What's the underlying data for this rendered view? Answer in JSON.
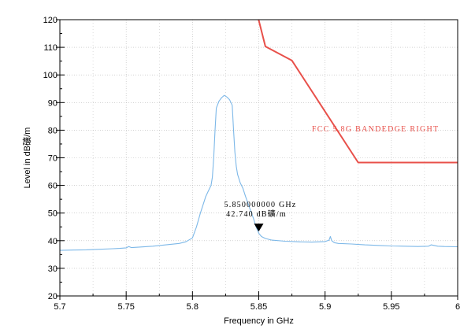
{
  "chart_data": {
    "type": "line",
    "xlabel": "Frequency in GHz",
    "ylabel": "Level in dB礦/m",
    "xlim": [
      5.7,
      6.0
    ],
    "ylim": [
      20,
      120
    ],
    "x_ticks": [
      "5.7",
      "5.75",
      "5.8",
      "5.85",
      "5.9",
      "5.95",
      "6"
    ],
    "y_ticks": [
      "20",
      "30",
      "40",
      "50",
      "60",
      "70",
      "80",
      "90",
      "100",
      "110",
      "120"
    ],
    "grid": true,
    "colors": {
      "measurement": "#7db8e8",
      "limit": "#e8504a",
      "grid": "#b9b9b9",
      "frame": "#000000",
      "marker": "#000000"
    },
    "series": [
      {
        "name": "FCC 5.8G BANDEDGE RIGHT",
        "role": "limit",
        "x": [
          5.8499,
          5.855,
          5.875,
          5.925,
          6.0
        ],
        "y": [
          120,
          110.3,
          105.2,
          68.3,
          68.3
        ]
      },
      {
        "role": "measurement",
        "x": [
          5.7,
          5.71,
          5.72,
          5.73,
          5.74,
          5.745,
          5.75,
          5.752,
          5.754,
          5.76,
          5.77,
          5.78,
          5.79,
          5.795,
          5.8,
          5.803,
          5.806,
          5.808,
          5.81,
          5.812,
          5.814,
          5.815,
          5.816,
          5.817,
          5.818,
          5.82,
          5.822,
          5.824,
          5.826,
          5.828,
          5.83,
          5.831,
          5.832,
          5.833,
          5.834,
          5.836,
          5.838,
          5.84,
          5.843,
          5.846,
          5.848,
          5.85,
          5.852,
          5.855,
          5.86,
          5.87,
          5.88,
          5.89,
          5.9,
          5.903,
          5.904,
          5.905,
          5.907,
          5.91,
          5.92,
          5.93,
          5.94,
          5.95,
          5.96,
          5.97,
          5.978,
          5.98,
          5.985,
          5.99,
          6.0
        ],
        "y": [
          36.5,
          36.6,
          36.7,
          36.9,
          37.1,
          37.2,
          37.4,
          37.9,
          37.5,
          37.7,
          38.0,
          38.5,
          39.0,
          39.6,
          41.0,
          45.0,
          50.0,
          53.0,
          56.0,
          58.0,
          60.0,
          63.0,
          70.0,
          80.0,
          88.0,
          90.5,
          91.8,
          92.6,
          92.0,
          91.0,
          89.0,
          80.0,
          72.0,
          67.0,
          64.0,
          61.0,
          59.0,
          56.0,
          52.0,
          48.0,
          45.0,
          42.7,
          41.5,
          40.8,
          40.2,
          39.8,
          39.6,
          39.5,
          39.7,
          40.2,
          41.5,
          40.0,
          39.3,
          39.0,
          38.8,
          38.5,
          38.3,
          38.1,
          38.0,
          37.9,
          38.0,
          38.5,
          38.0,
          37.9,
          37.8
        ]
      }
    ],
    "annotations": [
      {
        "kind": "limit-label",
        "text": "FCC 5.8G BANDEDGE RIGHT",
        "x": 5.89,
        "y": 79.5
      },
      {
        "kind": "marker",
        "line1": "5.850000000 GHz",
        "line2": "42.740 dB礦/m",
        "x": 5.85,
        "y": 42.74
      }
    ]
  }
}
